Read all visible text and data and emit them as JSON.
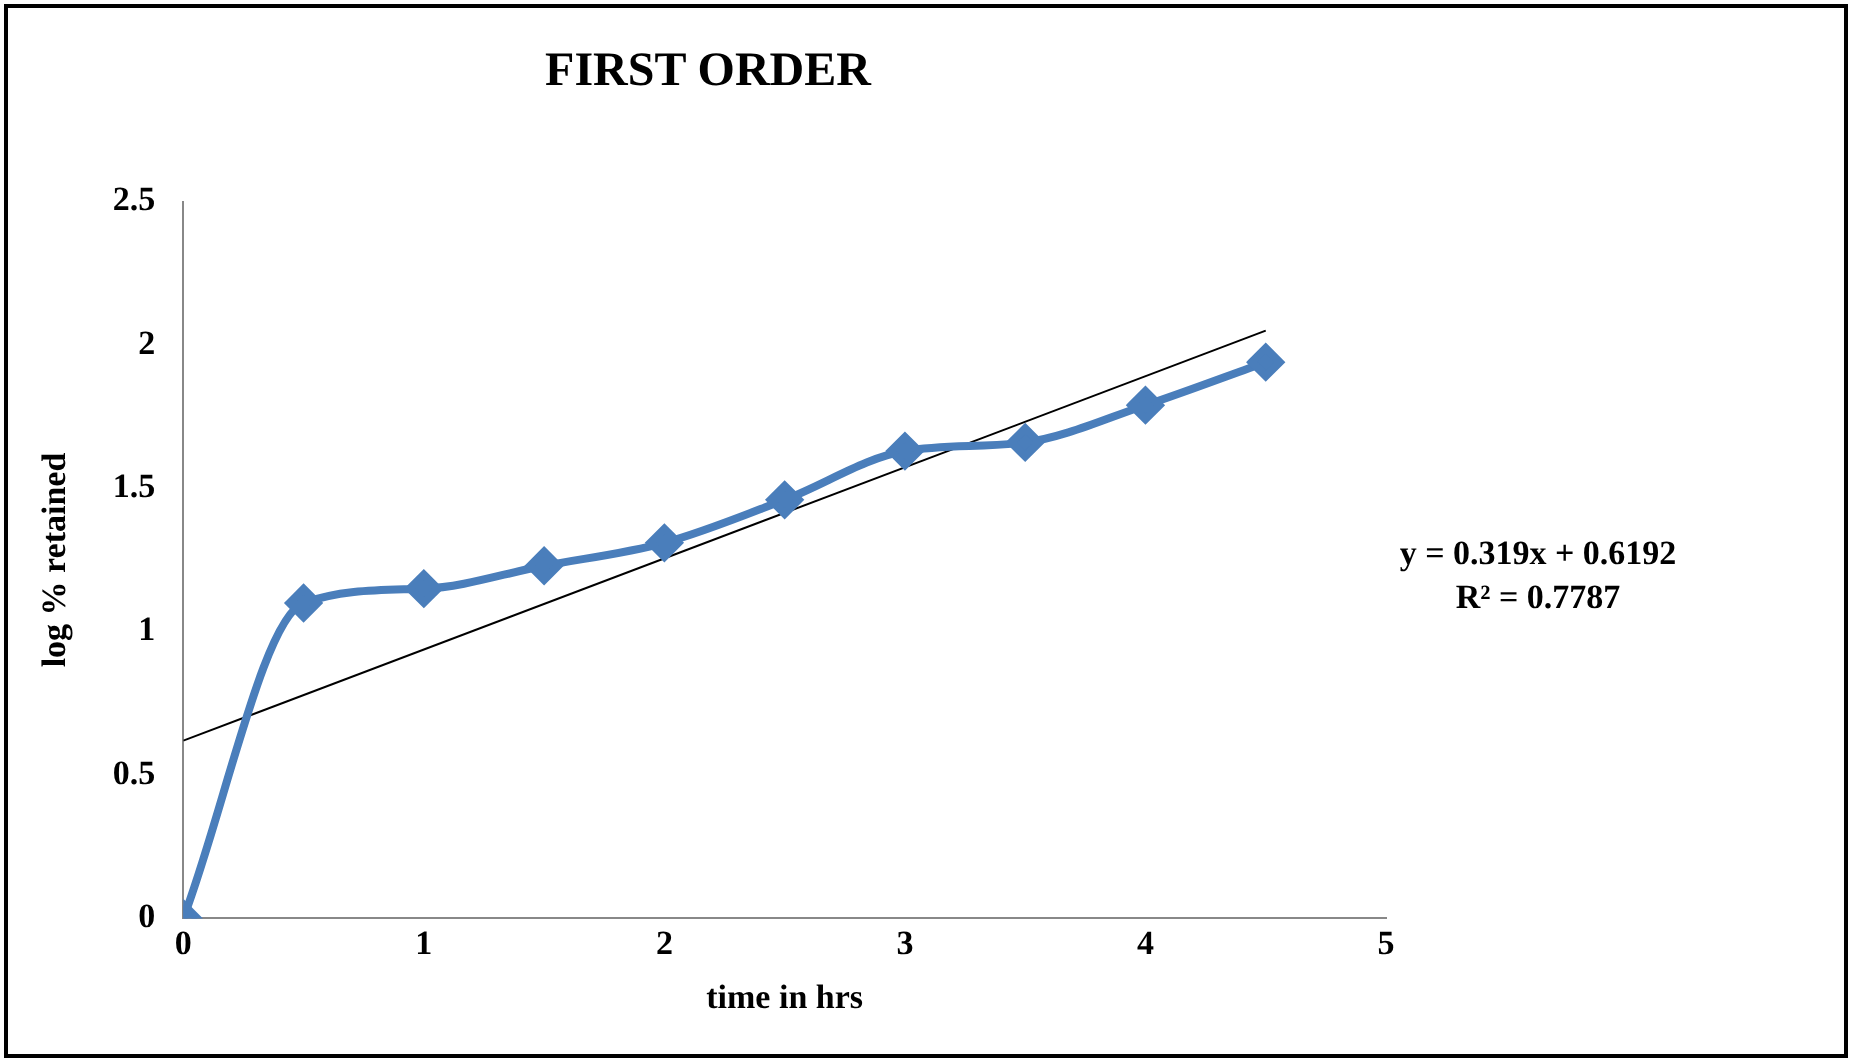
{
  "chart_data": {
    "type": "line",
    "title": "FIRST ORDER",
    "xlabel": "time in hrs",
    "ylabel": "log % retained",
    "xlim": [
      0,
      5
    ],
    "xticks": [
      0,
      1,
      2,
      3,
      4,
      5
    ],
    "ylim": [
      0,
      2.5
    ],
    "yticks": [
      0,
      0.5,
      1,
      1.5,
      2,
      2.5
    ],
    "grid": false,
    "legend": false,
    "series": [
      {
        "type": "line",
        "color": "#4a7ebb",
        "marker": "diamond",
        "x": [
          0,
          0.5,
          1,
          1.5,
          2,
          2.5,
          3,
          3.5,
          4,
          4.5
        ],
        "values": [
          0,
          1.1,
          1.15,
          1.23,
          1.31,
          1.46,
          1.63,
          1.66,
          1.79,
          1.94
        ]
      },
      {
        "type": "line",
        "color": "#000000",
        "marker": "none",
        "x": [
          0,
          4.5
        ],
        "values": [
          0.62,
          2.05
        ]
      }
    ],
    "annotations": [
      "y = 0.319x + 0.6192",
      "R² = 0.7787"
    ]
  }
}
